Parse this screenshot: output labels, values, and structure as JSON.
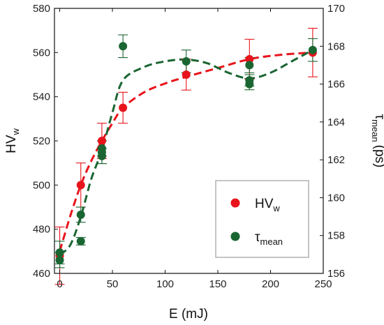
{
  "chart_data": {
    "type": "scatter",
    "xlabel": "E (mJ)",
    "x_ticks": [
      0,
      50,
      100,
      150,
      200,
      250
    ],
    "xlim": [
      -5,
      250
    ],
    "y_left": {
      "label_main": "HV",
      "label_sub": "w",
      "lim": [
        460,
        580
      ],
      "ticks": [
        460,
        480,
        500,
        520,
        540,
        560,
        580
      ]
    },
    "y_right": {
      "label_main": "τ",
      "label_sub": "mean",
      "label_unit": "(ps)",
      "lim": [
        156,
        170
      ],
      "ticks": [
        156,
        158,
        160,
        162,
        164,
        166,
        168,
        170
      ]
    },
    "grid": false,
    "legend_position": "lower-right",
    "series": [
      {
        "name_main": "HV",
        "name_sub": "w",
        "axis": "left",
        "color": "#e8141b",
        "points": [
          {
            "x": 0,
            "y": 468,
            "err": 13
          },
          {
            "x": 20,
            "y": 500,
            "err": 10
          },
          {
            "x": 40,
            "y": 520,
            "err": 8
          },
          {
            "x": 60,
            "y": 535,
            "err": 7
          },
          {
            "x": 120,
            "y": 550,
            "err": 7
          },
          {
            "x": 180,
            "y": 557,
            "err": 9
          },
          {
            "x": 240,
            "y": 560,
            "err": 11
          }
        ],
        "fit": [
          [
            0,
            470
          ],
          [
            10,
            486
          ],
          [
            20,
            500
          ],
          [
            30,
            511
          ],
          [
            40,
            520
          ],
          [
            50,
            528
          ],
          [
            60,
            535
          ],
          [
            80,
            542
          ],
          [
            100,
            546
          ],
          [
            120,
            549
          ],
          [
            150,
            553
          ],
          [
            180,
            557
          ],
          [
            210,
            559
          ],
          [
            240,
            560
          ]
        ]
      },
      {
        "name_main": "τ",
        "name_sub": "mean",
        "axis": "right",
        "color": "#1a6632",
        "points": [
          {
            "x": 0,
            "y": 157.1,
            "err": 0.6
          },
          {
            "x": 0,
            "y": 156.7,
            "err": 0.4
          },
          {
            "x": 20,
            "y": 159.1,
            "err": 0.4
          },
          {
            "x": 20,
            "y": 157.7,
            "err": 0.2
          },
          {
            "x": 40,
            "y": 162.4,
            "err": 0.6
          },
          {
            "x": 40,
            "y": 162.6,
            "err": 0.4
          },
          {
            "x": 40,
            "y": 162.2,
            "err": 0.4
          },
          {
            "x": 60,
            "y": 168.0,
            "err": 0.6
          },
          {
            "x": 120,
            "y": 167.2,
            "err": 0.6
          },
          {
            "x": 180,
            "y": 167.0,
            "err": 0.4
          },
          {
            "x": 180,
            "y": 166.2,
            "err": 0.3
          },
          {
            "x": 180,
            "y": 166.0,
            "err": 0.3
          },
          {
            "x": 240,
            "y": 167.8,
            "err": 0.6
          }
        ],
        "fit": [
          [
            0,
            157.0
          ],
          [
            10,
            157.5
          ],
          [
            20,
            159.0
          ],
          [
            30,
            161.0
          ],
          [
            40,
            162.5
          ],
          [
            50,
            164.5
          ],
          [
            60,
            166.2
          ],
          [
            80,
            166.9
          ],
          [
            100,
            167.2
          ],
          [
            120,
            167.3
          ],
          [
            140,
            167.1
          ],
          [
            160,
            166.6
          ],
          [
            180,
            166.3
          ],
          [
            200,
            166.6
          ],
          [
            220,
            167.2
          ],
          [
            240,
            167.8
          ]
        ]
      }
    ]
  }
}
